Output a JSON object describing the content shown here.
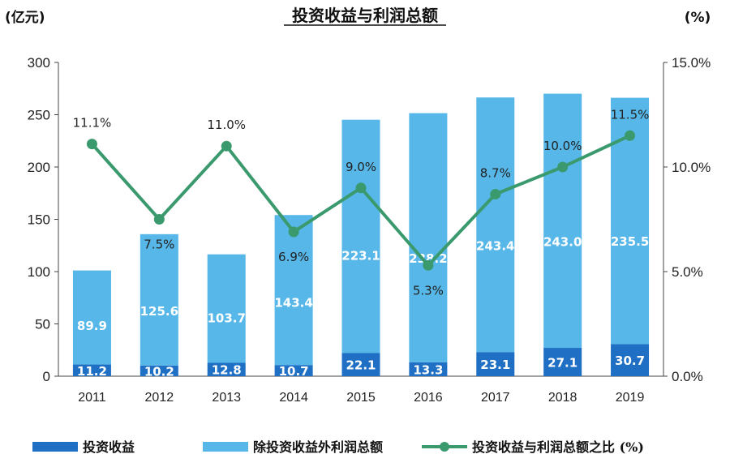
{
  "chart_data": {
    "type": "bar",
    "title": "投资收益与利润总额",
    "ylabel": "(亿元)",
    "y2label": "(%)",
    "categories": [
      "2011",
      "2012",
      "2013",
      "2014",
      "2015",
      "2016",
      "2017",
      "2018",
      "2019"
    ],
    "ylim": [
      0,
      300
    ],
    "yticks": [
      "0",
      "50",
      "100",
      "150",
      "200",
      "250",
      "300"
    ],
    "y2lim": [
      0,
      15
    ],
    "y2ticks": [
      "0.0%",
      "5.0%",
      "10.0%",
      "15.0%"
    ],
    "stacked": true,
    "series": [
      {
        "name": "投资收益",
        "kind": "bar",
        "color": "#1f6fc4",
        "values": [
          11.2,
          10.2,
          12.8,
          10.7,
          22.1,
          13.3,
          23.1,
          27.1,
          30.7
        ],
        "labels": [
          "11.2",
          "10.2",
          "12.8",
          "10.7",
          "22.1",
          "13.3",
          "23.1",
          "27.1",
          "30.7"
        ]
      },
      {
        "name": "除投资收益外利润总额",
        "kind": "bar",
        "color": "#57b7e8",
        "values": [
          89.9,
          125.6,
          103.7,
          143.4,
          223.1,
          238.2,
          243.4,
          243.0,
          235.5
        ],
        "labels": [
          "89.9",
          "125.6",
          "103.7",
          "143.4",
          "223.1",
          "238.2",
          "243.4",
          "243.0",
          "235.5"
        ]
      },
      {
        "name": "投资收益与利润总额之比 (%)",
        "kind": "line",
        "axis": "right",
        "color": "#3a9a6e",
        "values": [
          11.1,
          7.5,
          11.0,
          6.9,
          9.0,
          5.3,
          8.7,
          10.0,
          11.5
        ],
        "labels": [
          "11.1%",
          "7.5%",
          "11.0%",
          "6.9%",
          "9.0%",
          "5.3%",
          "8.7%",
          "10.0%",
          "11.5%"
        ]
      }
    ],
    "legend_position": "bottom",
    "grid": false
  }
}
